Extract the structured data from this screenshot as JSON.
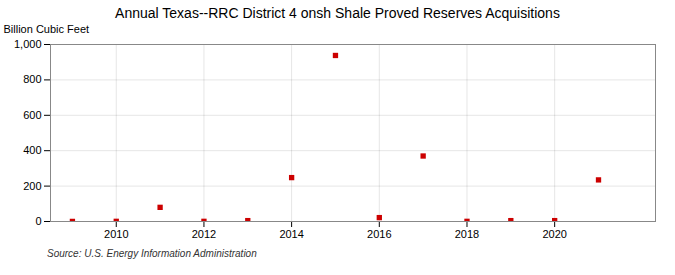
{
  "chart_data": {
    "type": "scatter",
    "title": "Annual Texas--RRC District 4 onsh Shale Proved Reserves Acquisitions",
    "ylabel": "Billion Cubic Feet",
    "source": "Source: U.S. Energy Information Administration",
    "x": [
      2009,
      2010,
      2011,
      2012,
      2013,
      2014,
      2015,
      2016,
      2017,
      2018,
      2019,
      2020,
      2021
    ],
    "values": [
      0.5,
      1.0,
      80.0,
      1.0,
      5.0,
      248.0,
      938.0,
      22.0,
      370.0,
      1.0,
      5.0,
      5.0,
      235.0
    ],
    "color": "#cc0000",
    "marker": "square",
    "grid": true,
    "xlim": [
      2008.5,
      2022.3
    ],
    "xticks": [
      2010,
      2012,
      2014,
      2016,
      2018,
      2020
    ],
    "ylim": [
      0,
      1000
    ],
    "yticks": [
      0,
      200,
      400,
      600,
      800,
      {
        "value": 1000,
        "label": "1,000"
      }
    ]
  }
}
